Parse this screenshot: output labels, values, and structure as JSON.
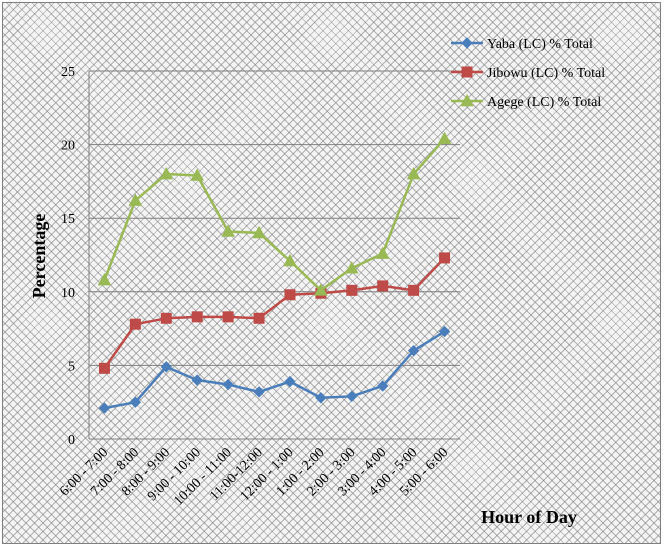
{
  "chart_data": {
    "type": "line",
    "title": "",
    "xlabel": "Hour of Day",
    "ylabel": "Percentage",
    "ylim": [
      0,
      25
    ],
    "yticks": [
      0,
      5,
      10,
      15,
      20,
      25
    ],
    "grid": true,
    "legend_position": "top-right",
    "categories": [
      "6:00 - 7:00",
      "7:00 - 8:00",
      "8:00 - 9:00",
      "9:00 - 10:00",
      "10:00 - 11:00",
      "11:00-12:00",
      "12:00 - 1:00",
      "1:00 - 2:00",
      "2:00 - 3:00",
      "3:00 - 4:00",
      "4:00 - 5:00",
      "5:00 - 6:00"
    ],
    "series": [
      {
        "name": "Yaba (LC) % Total",
        "color": "#4a7ebb",
        "marker": "diamond",
        "values": [
          2.1,
          2.5,
          4.9,
          4.0,
          3.7,
          3.2,
          3.9,
          2.8,
          2.9,
          3.6,
          6.0,
          7.3
        ]
      },
      {
        "name": "Jibowu (LC) % Total",
        "color": "#be4b48",
        "marker": "square",
        "values": [
          4.8,
          7.8,
          8.2,
          8.3,
          8.3,
          8.2,
          9.8,
          9.9,
          10.1,
          10.4,
          10.1,
          12.3
        ]
      },
      {
        "name": "Agege (LC) % Total",
        "color": "#98b954",
        "marker": "triangle",
        "values": [
          10.8,
          16.2,
          18.0,
          17.9,
          14.1,
          14.0,
          12.1,
          10.1,
          11.6,
          12.6,
          18.0,
          20.4
        ]
      }
    ]
  }
}
